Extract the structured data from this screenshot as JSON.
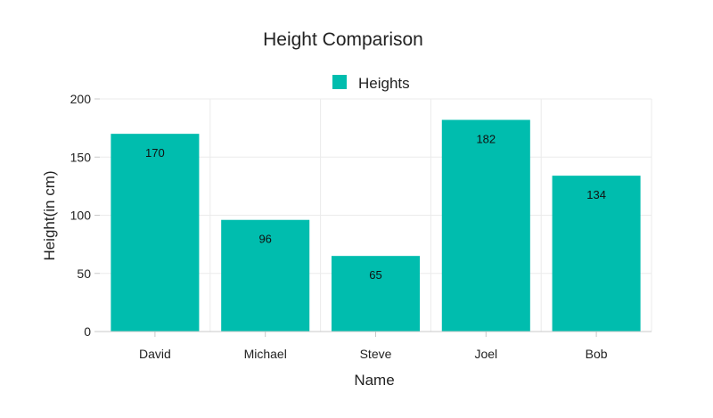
{
  "chart_data": {
    "type": "bar",
    "title": "Height Comparison",
    "xlabel": "Name",
    "ylabel": "Height(in cm)",
    "categories": [
      "David",
      "Michael",
      "Steve",
      "Joel",
      "Bob"
    ],
    "series": [
      {
        "name": "Heights",
        "values": [
          170,
          96,
          65,
          182,
          134
        ],
        "color": "#00bdae"
      }
    ],
    "ylim": [
      0,
      200
    ],
    "yticks": [
      0,
      50,
      100,
      150,
      200
    ],
    "data_labels": true,
    "grid": true,
    "legend_position": "top-center"
  }
}
